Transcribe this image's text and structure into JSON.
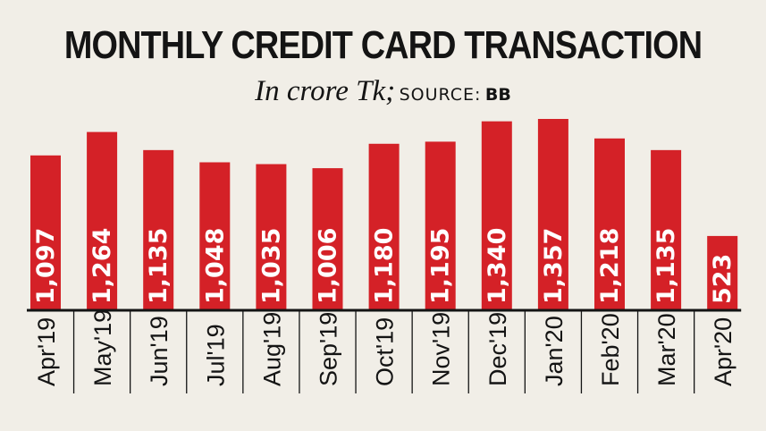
{
  "header": {
    "title": "MONTHLY CREDIT CARD TRANSACTION",
    "subtitle": "In crore Tk;",
    "source_label": "SOURCE:",
    "source_value": "BB"
  },
  "colors": {
    "bar": "#d42127",
    "background": "#f1eee7",
    "text": "#141414"
  },
  "chart_data": {
    "type": "bar",
    "title": "MONTHLY CREDIT CARD TRANSACTION",
    "subtitle": "In crore Tk; SOURCE: BB",
    "categories": [
      "Apr'19",
      "May'19",
      "Jun'19",
      "Jul'19",
      "Aug'19",
      "Sep'19",
      "Oct'19",
      "Nov'19",
      "Dec'19",
      "Jan'20",
      "Feb'20",
      "Mar'20",
      "Apr'20"
    ],
    "values": [
      1097,
      1264,
      1135,
      1048,
      1035,
      1006,
      1180,
      1195,
      1340,
      1357,
      1218,
      1135,
      523
    ],
    "data_labels": [
      "1,097",
      "1,264",
      "1,135",
      "1,048",
      "1,035",
      "1,006",
      "1,180",
      "1,195",
      "1,340",
      "1,357",
      "1,218",
      "1,135",
      "523"
    ],
    "ylim": [
      0,
      1357
    ],
    "grid": false,
    "legend": "none"
  }
}
